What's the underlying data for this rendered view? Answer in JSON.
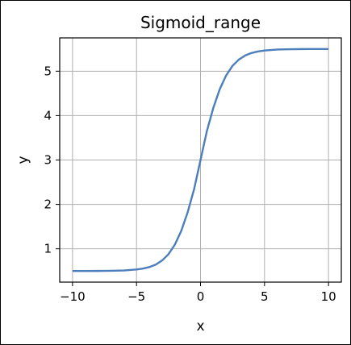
{
  "chart_data": {
    "type": "line",
    "title": "Sigmoid_range",
    "xlabel": "x",
    "ylabel": "y",
    "xlim": [
      -11,
      11
    ],
    "ylim": [
      0.25,
      5.75
    ],
    "grid": true,
    "x_ticks": [
      -10,
      -5,
      0,
      5,
      10
    ],
    "x_tick_labels": [
      "−10",
      "−5",
      "0",
      "5",
      "10"
    ],
    "y_ticks": [
      1,
      2,
      3,
      4,
      5
    ],
    "y_tick_labels": [
      "1",
      "2",
      "3",
      "4",
      "5"
    ],
    "line_color": "#4c7ebb",
    "series": [
      {
        "x": [
          -10,
          -9,
          -8,
          -7,
          -6,
          -5,
          -4.5,
          -4,
          -3.5,
          -3,
          -2.5,
          -2,
          -1.5,
          -1,
          -0.5,
          0,
          0.5,
          1,
          1.5,
          2,
          2.5,
          3,
          3.5,
          4,
          4.5,
          5,
          6,
          7,
          8,
          9,
          10
        ],
        "y": [
          0.5,
          0.501,
          0.502,
          0.505,
          0.512,
          0.534,
          0.555,
          0.589,
          0.644,
          0.737,
          0.88,
          1.096,
          1.407,
          1.827,
          2.345,
          3.0,
          3.655,
          4.173,
          4.593,
          4.904,
          5.12,
          5.263,
          5.356,
          5.411,
          5.445,
          5.466,
          5.488,
          5.495,
          5.498,
          5.499,
          5.5
        ]
      }
    ]
  }
}
